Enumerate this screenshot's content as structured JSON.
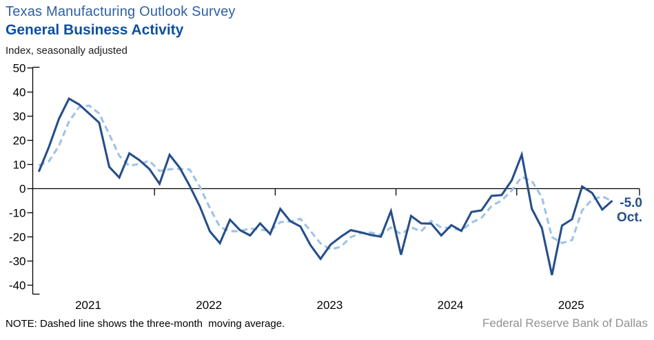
{
  "chart_data": {
    "type": "line",
    "title": "Texas Manufacturing Outlook Survey",
    "subtitle": "General Business Activity",
    "ylabel": "Index, seasonally adjusted",
    "frequency": "monthly",
    "x_start_month": "2021-01",
    "x_end_month": "2025-10",
    "ylim": [
      -40,
      50
    ],
    "y_ticks": [
      50,
      40,
      30,
      20,
      10,
      0,
      -10,
      -20,
      -30,
      -40
    ],
    "x_year_labels": [
      "2021",
      "2022",
      "2023",
      "2024",
      "2025"
    ],
    "grid": "none",
    "legend": "none",
    "axis_color": "#000000",
    "series": [
      {
        "name": "General Business Activity index",
        "line_style": "solid",
        "color": "#254e8a",
        "values": [
          7.0,
          17.2,
          28.9,
          37.3,
          34.9,
          31.1,
          27.3,
          9.0,
          4.6,
          14.6,
          11.8,
          8.1,
          2.0,
          14.0,
          8.7,
          1.1,
          -7.3,
          -17.7,
          -22.6,
          -12.9,
          -17.2,
          -19.4,
          -14.4,
          -18.8,
          -8.4,
          -13.5,
          -15.7,
          -23.4,
          -29.1,
          -23.2,
          -20.0,
          -17.2,
          -18.1,
          -19.2,
          -19.9,
          -9.3,
          -27.4,
          -11.3,
          -14.4,
          -14.5,
          -19.4,
          -15.1,
          -17.5,
          -9.7,
          -9.0,
          -3.0,
          -2.7,
          3.4,
          14.1,
          -8.3,
          -16.3,
          -35.8,
          -15.3,
          -12.7,
          0.9,
          -1.8,
          -8.7,
          -5.0
        ]
      },
      {
        "name": "Three-month moving average",
        "line_style": "dashed",
        "color": "#9dc3e6",
        "values": [
          9.6,
          11.3,
          17.7,
          27.8,
          33.7,
          34.4,
          31.1,
          22.5,
          13.6,
          9.4,
          10.3,
          11.5,
          7.3,
          8.0,
          8.2,
          7.9,
          0.8,
          -8.0,
          -15.9,
          -17.7,
          -17.6,
          -16.5,
          -17.0,
          -17.5,
          -13.9,
          -13.6,
          -12.5,
          -17.5,
          -22.7,
          -25.2,
          -24.1,
          -20.1,
          -18.4,
          -18.2,
          -19.1,
          -16.1,
          -18.9,
          -16.0,
          -17.7,
          -13.4,
          -16.1,
          -16.3,
          -17.3,
          -14.1,
          -12.1,
          -7.2,
          -4.9,
          -0.8,
          4.9,
          3.1,
          -3.5,
          -20.1,
          -22.5,
          -21.3,
          -9.0,
          -4.5,
          -3.2,
          -5.2
        ]
      }
    ],
    "annotation": {
      "value": -5.0,
      "value_label": "-5.0",
      "month_label": "Oct.",
      "color": "#254e8a"
    }
  },
  "note": "NOTE: Dashed line shows the three-month  moving average.",
  "source": "Federal Reserve Bank of Dallas"
}
